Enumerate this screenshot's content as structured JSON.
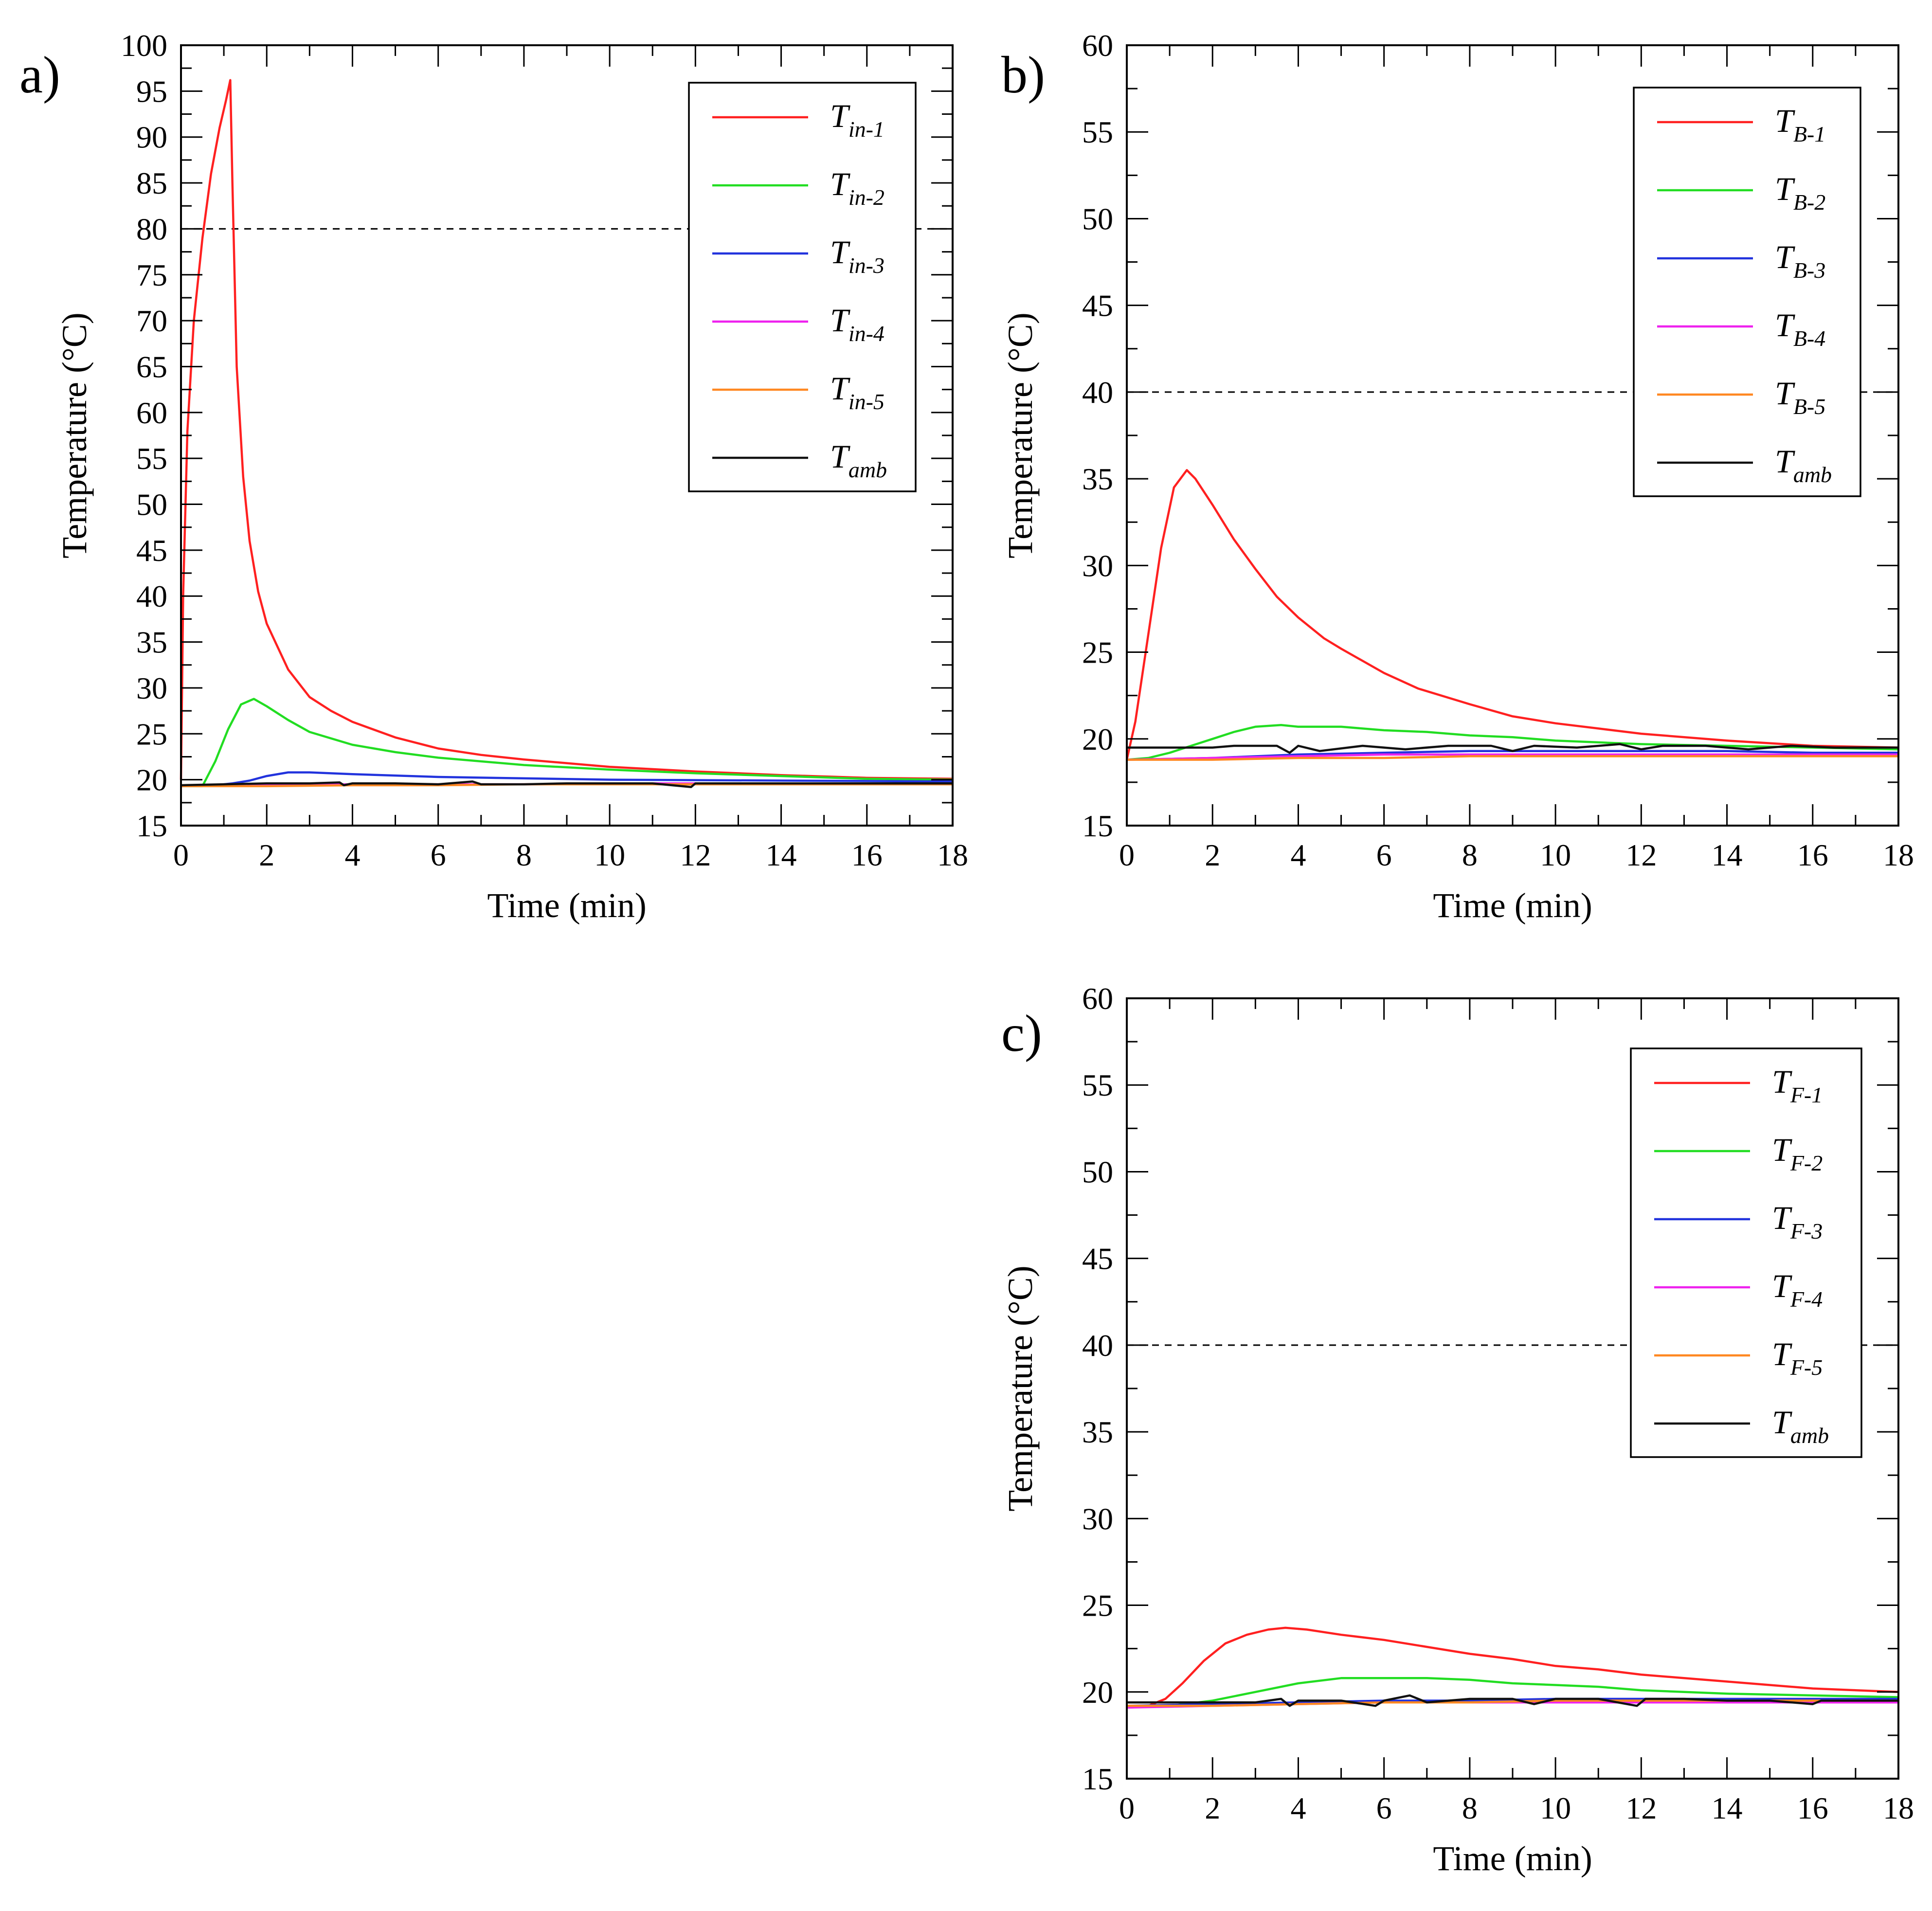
{
  "figure": {
    "panels": [
      "a",
      "b",
      "c"
    ]
  },
  "chart_data": [
    {
      "id": "a",
      "type": "line",
      "panel_label": "a)",
      "xlabel": "Time (min)",
      "ylabel": "Temperature (°C)",
      "xlim": [
        0,
        18
      ],
      "ylim": [
        15,
        100
      ],
      "xticks": [
        0,
        2,
        4,
        6,
        8,
        10,
        12,
        14,
        16,
        18
      ],
      "yticks": [
        15,
        20,
        25,
        30,
        35,
        40,
        45,
        50,
        55,
        60,
        65,
        70,
        75,
        80,
        85,
        90,
        95,
        100
      ],
      "reference_line": 80,
      "legend_position": "top-right",
      "series": [
        {
          "name": "T",
          "sub": "in-1",
          "color": "#ff2020",
          "x": [
            0,
            0.05,
            0.15,
            0.3,
            0.5,
            0.7,
            0.9,
            1.05,
            1.15,
            1.2,
            1.3,
            1.45,
            1.6,
            1.8,
            2.0,
            2.5,
            3.0,
            3.5,
            4.0,
            5.0,
            6.0,
            7.0,
            8.0,
            10.0,
            12.0,
            14.0,
            16.0,
            18.0
          ],
          "y": [
            20,
            40,
            58,
            70,
            79,
            86,
            91,
            94,
            96.2,
            85,
            65,
            53,
            46,
            40.5,
            37,
            32,
            29,
            27.5,
            26.3,
            24.6,
            23.4,
            22.7,
            22.2,
            21.4,
            20.9,
            20.5,
            20.2,
            20.1
          ]
        },
        {
          "name": "T",
          "sub": "in-2",
          "color": "#22dd22",
          "x": [
            0,
            0.5,
            0.8,
            1.1,
            1.4,
            1.7,
            2.0,
            2.5,
            3.0,
            4.0,
            5.0,
            6.0,
            8.0,
            10.0,
            12.0,
            14.0,
            16.0,
            18.0
          ],
          "y": [
            19.3,
            19.3,
            22,
            25.5,
            28.2,
            28.8,
            28,
            26.5,
            25.2,
            23.8,
            23,
            22.4,
            21.6,
            21.1,
            20.7,
            20.4,
            20.1,
            20.0
          ]
        },
        {
          "name": "T",
          "sub": "in-3",
          "color": "#2233dd",
          "x": [
            0,
            0.8,
            1.2,
            1.6,
            2.0,
            2.5,
            3.0,
            4.0,
            6.0,
            10.0,
            14.0,
            18.0
          ],
          "y": [
            19.3,
            19.4,
            19.6,
            19.9,
            20.4,
            20.8,
            20.8,
            20.6,
            20.3,
            20.0,
            19.9,
            19.8
          ]
        },
        {
          "name": "T",
          "sub": "in-4",
          "color": "#ee22ee",
          "x": [
            0,
            2,
            4,
            6,
            8,
            10,
            12,
            14,
            16,
            18
          ],
          "y": [
            19.3,
            19.4,
            19.5,
            19.5,
            19.5,
            19.6,
            19.6,
            19.6,
            19.6,
            19.6
          ]
        },
        {
          "name": "T",
          "sub": "in-5",
          "color": "#ff8822",
          "x": [
            0,
            2,
            4,
            6,
            8,
            10,
            12,
            14,
            16,
            18
          ],
          "y": [
            19.3,
            19.3,
            19.4,
            19.4,
            19.5,
            19.5,
            19.5,
            19.5,
            19.5,
            19.5
          ]
        },
        {
          "name": "T",
          "sub": "amb",
          "color": "#111111",
          "x": [
            0,
            1,
            2,
            3,
            3.7,
            3.8,
            4,
            5,
            6,
            6.8,
            7,
            8,
            9,
            10,
            11,
            11.9,
            12,
            13,
            14,
            15,
            16,
            17,
            18
          ],
          "y": [
            19.4,
            19.5,
            19.6,
            19.6,
            19.7,
            19.4,
            19.6,
            19.6,
            19.5,
            19.8,
            19.5,
            19.5,
            19.6,
            19.6,
            19.6,
            19.2,
            19.6,
            19.6,
            19.6,
            19.6,
            19.6,
            19.6,
            19.6
          ]
        }
      ]
    },
    {
      "id": "b",
      "type": "line",
      "panel_label": "b)",
      "xlabel": "Time (min)",
      "ylabel": "Temperature (°C)",
      "xlim": [
        0,
        18
      ],
      "ylim": [
        15,
        60
      ],
      "xticks": [
        0,
        2,
        4,
        6,
        8,
        10,
        12,
        14,
        16,
        18
      ],
      "yticks": [
        15,
        20,
        25,
        30,
        35,
        40,
        45,
        50,
        55,
        60
      ],
      "reference_line": 40,
      "legend_position": "top-right",
      "series": [
        {
          "name": "T",
          "sub": "B-1",
          "color": "#ff2020",
          "x": [
            0,
            0.2,
            0.5,
            0.8,
            1.1,
            1.4,
            1.6,
            2.0,
            2.5,
            3.0,
            3.5,
            4.0,
            4.6,
            5.0,
            6.0,
            6.8,
            8.0,
            9.0,
            10.0,
            11.0,
            12.0,
            14.0,
            16.0,
            18.0
          ],
          "y": [
            18.8,
            21,
            26,
            31,
            34.5,
            35.5,
            35,
            33.5,
            31.5,
            29.8,
            28.2,
            27,
            25.8,
            25.2,
            23.8,
            22.9,
            22,
            21.3,
            20.9,
            20.6,
            20.3,
            19.9,
            19.6,
            19.5
          ]
        },
        {
          "name": "T",
          "sub": "B-2",
          "color": "#22dd22",
          "x": [
            0,
            0.5,
            1.0,
            1.5,
            2.0,
            2.5,
            3.0,
            3.6,
            4.0,
            5.0,
            6.0,
            7.0,
            8.0,
            9.0,
            10.0,
            11.0,
            12.0,
            14.0,
            16.0,
            18.0
          ],
          "y": [
            18.8,
            18.9,
            19.2,
            19.6,
            20.0,
            20.4,
            20.7,
            20.8,
            20.7,
            20.7,
            20.5,
            20.4,
            20.2,
            20.1,
            19.9,
            19.8,
            19.7,
            19.6,
            19.5,
            19.4
          ]
        },
        {
          "name": "T",
          "sub": "B-3",
          "color": "#2233dd",
          "x": [
            0,
            2,
            4,
            6,
            8,
            10,
            12,
            14,
            16,
            18
          ],
          "y": [
            18.8,
            18.9,
            19.1,
            19.2,
            19.3,
            19.3,
            19.3,
            19.3,
            19.2,
            19.2
          ]
        },
        {
          "name": "T",
          "sub": "B-4",
          "color": "#ee22ee",
          "x": [
            0,
            2,
            4,
            6,
            8,
            10,
            12,
            14,
            16,
            18
          ],
          "y": [
            18.8,
            18.9,
            19.0,
            19.1,
            19.1,
            19.1,
            19.1,
            19.1,
            19.1,
            19.1
          ]
        },
        {
          "name": "T",
          "sub": "B-5",
          "color": "#ff8822",
          "x": [
            0,
            2,
            4,
            6,
            8,
            10,
            12,
            14,
            16,
            18
          ],
          "y": [
            18.8,
            18.8,
            18.9,
            18.9,
            19.0,
            19.0,
            19.0,
            19.0,
            19.0,
            19.0
          ]
        },
        {
          "name": "T",
          "sub": "amb",
          "color": "#111111",
          "x": [
            0,
            1,
            2,
            2.5,
            3.5,
            3.8,
            4,
            4.5,
            5.5,
            6.5,
            7.5,
            8.5,
            9.0,
            9.5,
            10.5,
            11.5,
            12.0,
            12.5,
            13.5,
            14.5,
            15.5,
            16.5,
            17.5,
            18
          ],
          "y": [
            19.5,
            19.5,
            19.5,
            19.6,
            19.6,
            19.2,
            19.6,
            19.3,
            19.6,
            19.4,
            19.6,
            19.6,
            19.3,
            19.6,
            19.5,
            19.7,
            19.4,
            19.6,
            19.6,
            19.4,
            19.6,
            19.5,
            19.5,
            19.5
          ]
        }
      ]
    },
    {
      "id": "c",
      "type": "line",
      "panel_label": "c)",
      "xlabel": "Time (min)",
      "ylabel": "Temperature (°C)",
      "xlim": [
        0,
        18
      ],
      "ylim": [
        15,
        60
      ],
      "xticks": [
        0,
        2,
        4,
        6,
        8,
        10,
        12,
        14,
        16,
        18
      ],
      "yticks": [
        15,
        20,
        25,
        30,
        35,
        40,
        45,
        50,
        55,
        60
      ],
      "reference_line": 40,
      "legend_position": "top-right",
      "series": [
        {
          "name": "T",
          "sub": "F-1",
          "color": "#ff2020",
          "x": [
            0,
            0.5,
            0.9,
            1.3,
            1.8,
            2.3,
            2.8,
            3.3,
            3.7,
            4.2,
            5.0,
            6.0,
            7.0,
            8.0,
            9.0,
            10.0,
            11.0,
            12.0,
            13.0,
            14.0,
            15.0,
            16.0,
            17.0,
            18.0
          ],
          "y": [
            19.1,
            19.2,
            19.6,
            20.5,
            21.8,
            22.8,
            23.3,
            23.6,
            23.7,
            23.6,
            23.3,
            23.0,
            22.6,
            22.2,
            21.9,
            21.5,
            21.3,
            21.0,
            20.8,
            20.6,
            20.4,
            20.2,
            20.1,
            20.0
          ]
        },
        {
          "name": "T",
          "sub": "F-2",
          "color": "#22dd22",
          "x": [
            0,
            1,
            2,
            3,
            4,
            5,
            6,
            7,
            8,
            9,
            10,
            11,
            12,
            13,
            14,
            16,
            18
          ],
          "y": [
            19.1,
            19.2,
            19.5,
            20.0,
            20.5,
            20.8,
            20.8,
            20.8,
            20.7,
            20.5,
            20.4,
            20.3,
            20.1,
            20.0,
            19.9,
            19.8,
            19.7
          ]
        },
        {
          "name": "T",
          "sub": "F-3",
          "color": "#2233dd",
          "x": [
            0,
            2,
            4,
            6,
            8,
            10,
            12,
            14,
            16,
            18
          ],
          "y": [
            19.2,
            19.3,
            19.4,
            19.5,
            19.5,
            19.6,
            19.6,
            19.6,
            19.6,
            19.6
          ]
        },
        {
          "name": "T",
          "sub": "F-4",
          "color": "#ee22ee",
          "x": [
            0,
            2,
            4,
            6,
            8,
            10,
            12,
            14,
            16,
            18
          ],
          "y": [
            19.1,
            19.2,
            19.3,
            19.4,
            19.4,
            19.4,
            19.4,
            19.4,
            19.4,
            19.4
          ]
        },
        {
          "name": "T",
          "sub": "F-5",
          "color": "#ff8822",
          "x": [
            0,
            2,
            4,
            6,
            8,
            10,
            12,
            14,
            16,
            18
          ],
          "y": [
            19.2,
            19.2,
            19.3,
            19.4,
            19.4,
            19.5,
            19.5,
            19.5,
            19.5,
            19.5
          ]
        },
        {
          "name": "T",
          "sub": "amb",
          "color": "#111111",
          "x": [
            0,
            1,
            2,
            3,
            3.6,
            3.8,
            4,
            5,
            5.8,
            6,
            6.6,
            7,
            8,
            9,
            9.5,
            10,
            11,
            11.9,
            12.1,
            13,
            14,
            15,
            16,
            16.2,
            17,
            18
          ],
          "y": [
            19.4,
            19.4,
            19.4,
            19.4,
            19.6,
            19.2,
            19.5,
            19.5,
            19.2,
            19.5,
            19.8,
            19.4,
            19.6,
            19.6,
            19.3,
            19.6,
            19.6,
            19.2,
            19.6,
            19.6,
            19.5,
            19.5,
            19.3,
            19.5,
            19.5,
            19.5
          ]
        }
      ]
    }
  ]
}
